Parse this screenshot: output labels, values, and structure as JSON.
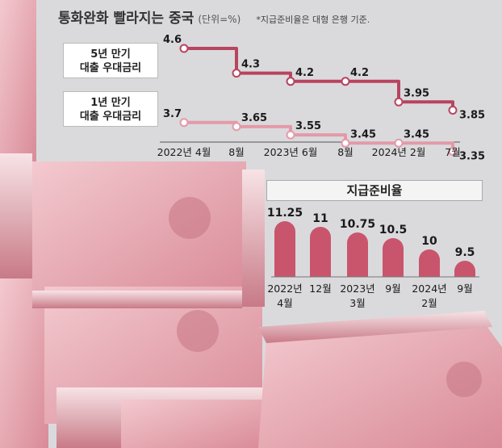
{
  "title": "통화완화 빨라지는 중국",
  "unit": "(단위=%)",
  "note": "*지급준비율은 대형 은행 기준.",
  "colors": {
    "dark": "#b8445f",
    "light": "#e39aa8",
    "bar": "#c9556d"
  },
  "chart_data": [
    {
      "type": "line",
      "series": [
        {
          "name": "5년 만기 대출 우대금리",
          "values": [
            4.6,
            4.3,
            4.2,
            4.2,
            3.95,
            3.85
          ]
        },
        {
          "name": "1년 만기 대출 우대금리",
          "values": [
            3.7,
            3.65,
            3.55,
            3.45,
            3.45,
            3.35
          ]
        }
      ],
      "value_labels": [
        [
          "4.6",
          "4.3",
          "4.2",
          "4.2",
          "3.95",
          "3.85"
        ],
        [
          "3.7",
          "3.65",
          "3.55",
          "3.45",
          "3.45",
          "3.35"
        ]
      ],
      "series_labels": [
        [
          "5년 만기",
          "대출 우대금리"
        ],
        [
          "1년 만기",
          "대출 우대금리"
        ]
      ],
      "categories": [
        "2022년 4월",
        "8월",
        "2023년 6월",
        "8월",
        "2024년 2월",
        "7월"
      ]
    },
    {
      "type": "bar",
      "title": "지급준비율",
      "values": [
        11.25,
        11,
        10.75,
        10.5,
        10,
        9.5
      ],
      "value_labels": [
        "11.25",
        "11",
        "10.75",
        "10.5",
        "10",
        "9.5"
      ],
      "categories": [
        [
          "2022년",
          "4월"
        ],
        [
          "12월",
          ""
        ],
        [
          "2023년",
          "3월"
        ],
        [
          "9월",
          ""
        ],
        [
          "2024년",
          "2월"
        ],
        [
          "9월",
          ""
        ]
      ]
    }
  ]
}
